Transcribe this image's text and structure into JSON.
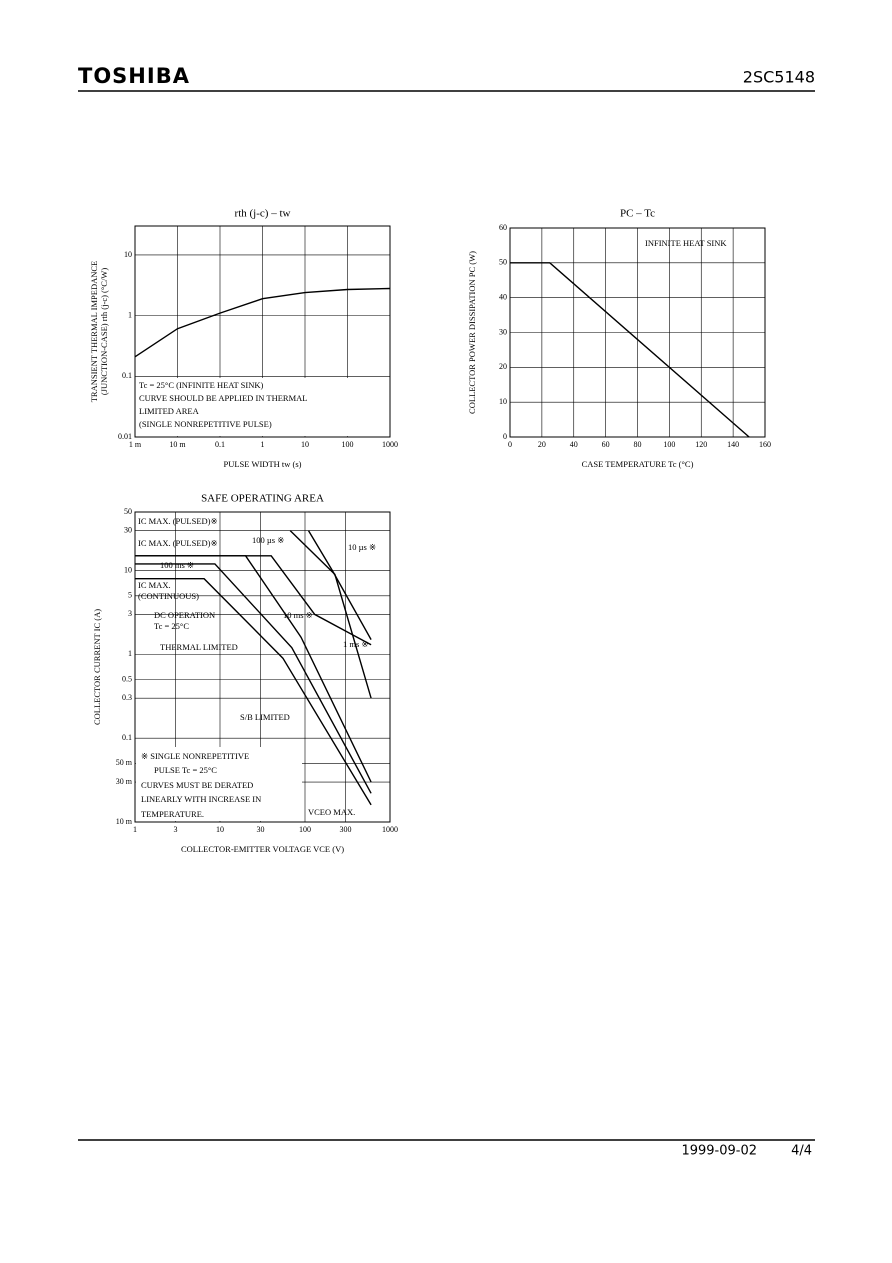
{
  "header": {
    "brand": "TOSHIBA",
    "part": "2SC5148"
  },
  "footer": {
    "date": "1999-09-02",
    "page": "4/4"
  },
  "chart_data": [
    {
      "type": "line",
      "title": "rth (j-c) – tw",
      "xlabel": "PULSE WIDTH  tw  (s)",
      "ylabel": [
        "TRANSIENT THERMAL IMPEDANCE",
        "(JUNCTION-CASE)  rth (j-c)  (°C/W)"
      ],
      "xscale": "log",
      "yscale": "log",
      "grid": true,
      "xlim": [
        0.001,
        1000
      ],
      "ylim": [
        0.01,
        30
      ],
      "xticks": [
        {
          "value": 0.001,
          "label": "1 m"
        },
        {
          "value": 0.01,
          "label": "10 m"
        },
        0.1,
        1,
        10,
        100,
        1000
      ],
      "yticks": [
        0.01,
        0.1,
        1,
        10
      ],
      "series": [
        {
          "color": "#000000",
          "x": [
            0.001,
            0.01,
            0.1,
            1,
            10,
            100,
            1000
          ],
          "values": [
            0.21,
            0.61,
            1.1,
            1.9,
            2.4,
            2.7,
            2.8
          ]
        }
      ],
      "annotations": [
        "Tc = 25°C (INFINITE HEAT SINK)",
        "CURVE SHOULD BE APPLIED IN THERMAL",
        "LIMITED AREA",
        "(SINGLE NONREPETITIVE PULSE)"
      ]
    },
    {
      "type": "line",
      "title": "PC – Tc",
      "xlabel": "CASE TEMPERATURE   Tc   (°C)",
      "ylabel": [
        "COLLECTOR POWER DISSIPATION   PC   (W)"
      ],
      "xscale": "linear",
      "yscale": "linear",
      "grid": true,
      "xlim": [
        0,
        160
      ],
      "ylim": [
        0,
        60
      ],
      "xticks": [
        0,
        20,
        40,
        60,
        80,
        100,
        120,
        140,
        160
      ],
      "yticks": [
        0,
        10,
        20,
        30,
        40,
        50,
        60
      ],
      "series": [
        {
          "color": "#000000",
          "x": [
            0,
            25,
            150
          ],
          "values": [
            50,
            50,
            0
          ]
        }
      ],
      "annotations": [
        "INFINITE HEAT SINK"
      ]
    },
    {
      "type": "line",
      "title": "SAFE OPERATING AREA",
      "xlabel": "COLLECTOR-EMITTER VOLTAGE   VCE   (V)",
      "ylabel": [
        "COLLECTOR CURRENT   IC   (A)"
      ],
      "xscale": "log",
      "yscale": "log",
      "grid": true,
      "xlim": [
        1,
        1000
      ],
      "ylim": [
        0.01,
        50
      ],
      "xticks": [
        1,
        3,
        10,
        30,
        100,
        300,
        1000
      ],
      "yticks": [
        {
          "value": 0.01,
          "label": "10 m"
        },
        {
          "value": 0.03,
          "label": "30 m"
        },
        {
          "value": 0.05,
          "label": "50 m"
        },
        0.1,
        0.3,
        0.5,
        1,
        3,
        5,
        10,
        30,
        50
      ],
      "series": [
        {
          "name": "DC OPERATION",
          "color": "#000000",
          "x": [
            1,
            6.5,
            55,
            600
          ],
          "values": [
            8,
            8,
            0.9,
            0.016
          ]
        },
        {
          "name": "100 ms ※",
          "color": "#000000",
          "x": [
            1,
            8.7,
            70,
            600
          ],
          "values": [
            12,
            12,
            1.2,
            0.022
          ]
        },
        {
          "name": "10 ms ※",
          "color": "#000000",
          "x": [
            1,
            20,
            90,
            600
          ],
          "values": [
            15,
            15,
            1.6,
            0.03
          ]
        },
        {
          "name": "1 ms ※",
          "color": "#000000",
          "x": [
            1,
            40,
            130,
            600
          ],
          "values": [
            15,
            15,
            3,
            1.3
          ]
        },
        {
          "name": "100 µs ※",
          "color": "#000000",
          "x": [
            67,
            225,
            600
          ],
          "values": [
            30,
            9,
            0.3
          ]
        },
        {
          "name": "10 µs ※",
          "color": "#000000",
          "x": [
            110,
            210,
            600
          ],
          "values": [
            30,
            10,
            1.5
          ]
        }
      ],
      "annotations": [
        "IC MAX. (PULSED)※",
        "IC MAX. (PULSED)※",
        "IC MAX.",
        "(CONTINUOUS)",
        "Tc = 25°C",
        "THERMAL LIMITED",
        "S/B LIMITED",
        "※ SINGLE NONREPETITIVE",
        "PULSE   Tc = 25°C",
        "CURVES MUST BE DERATED",
        "LINEARLY WITH INCREASE IN",
        "TEMPERATURE.",
        "VCEO MAX."
      ]
    }
  ]
}
